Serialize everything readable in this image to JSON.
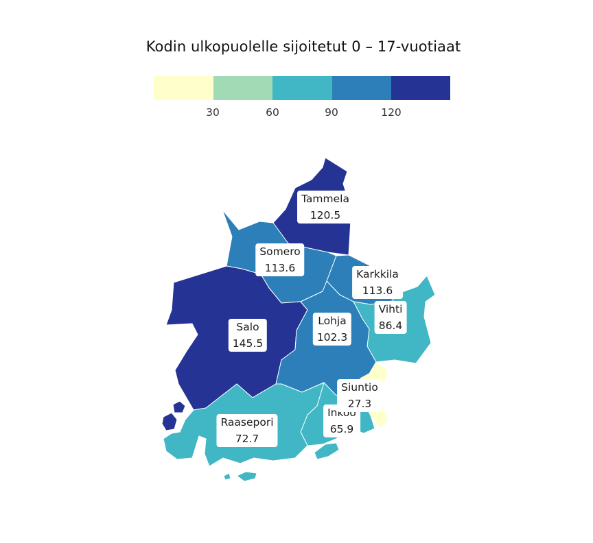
{
  "title": "Kodin ulkopuolelle sijoitetut 0 – 17-vuotiaat",
  "legend": {
    "bins": [
      {
        "color": "#ffffcc"
      },
      {
        "color": "#a1dab4"
      },
      {
        "color": "#41b6c4"
      },
      {
        "color": "#2c7fb8"
      },
      {
        "color": "#253494"
      }
    ],
    "ticks": [
      "30",
      "60",
      "90",
      "120"
    ]
  },
  "regions": [
    {
      "name": "Tammela",
      "value": "120.5",
      "color": "#253494"
    },
    {
      "name": "Somero",
      "value": "113.6",
      "color": "#2c7fb8"
    },
    {
      "name": "Karkkila",
      "value": "113.6",
      "color": "#2c7fb8"
    },
    {
      "name": "Vihti",
      "value": "86.4",
      "color": "#41b6c4"
    },
    {
      "name": "Salo",
      "value": "145.5",
      "color": "#253494"
    },
    {
      "name": "Lohja",
      "value": "102.3",
      "color": "#2c7fb8"
    },
    {
      "name": "Siuntio",
      "value": "27.3",
      "color": "#ffffcc"
    },
    {
      "name": "Inkoo",
      "value": "65.9",
      "color": "#41b6c4"
    },
    {
      "name": "Raasepori",
      "value": "72.7",
      "color": "#41b6c4"
    }
  ]
}
